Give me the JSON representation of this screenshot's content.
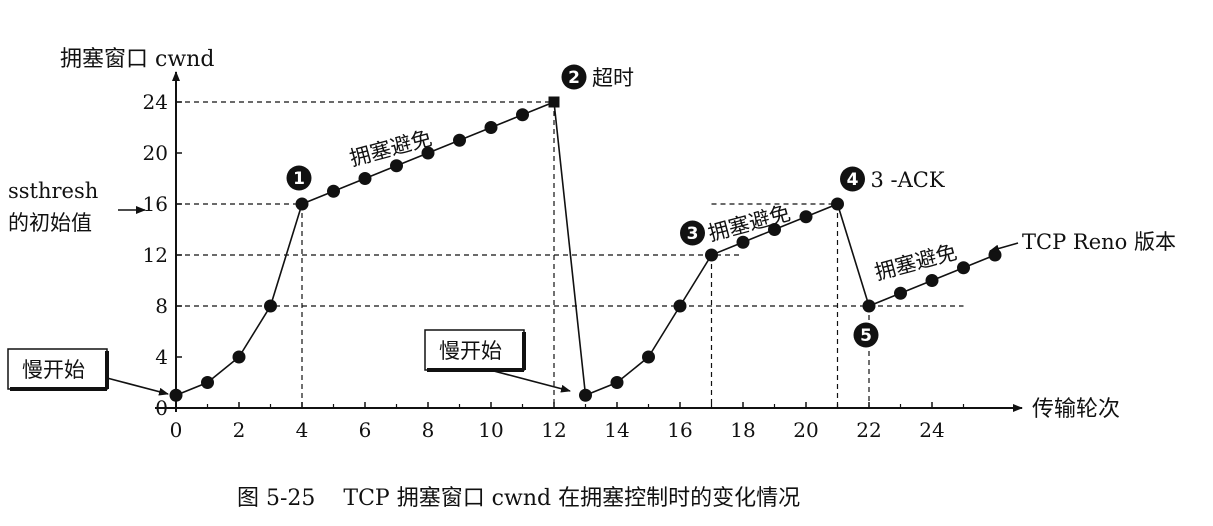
{
  "chart_data": {
    "type": "line",
    "title": "图 5-25    TCP 拥塞窗口 cwnd 在拥塞控制时的变化情况",
    "ylabel": "拥塞窗口  cwnd",
    "xlabel": "传输轮次",
    "xlim": [
      0,
      26
    ],
    "ylim": [
      0,
      24
    ],
    "xticks": [
      "0",
      "2",
      "4",
      "6",
      "8",
      "10",
      "12",
      "14",
      "16",
      "18",
      "20",
      "22",
      "24"
    ],
    "yticks": [
      "0",
      "4",
      "8",
      "12",
      "16",
      "20",
      "24"
    ],
    "x": [
      0,
      1,
      2,
      3,
      4,
      5,
      6,
      7,
      8,
      9,
      10,
      11,
      12,
      13,
      14,
      15,
      16,
      17,
      18,
      19,
      20,
      21,
      22,
      23,
      24,
      25,
      26
    ],
    "series": [
      {
        "values": [
          1,
          2,
          4,
          8,
          16,
          17,
          18,
          19,
          20,
          21,
          22,
          23,
          24,
          1,
          2,
          4,
          8,
          12,
          13,
          14,
          15,
          16,
          8,
          9,
          10,
          11,
          12
        ]
      }
    ],
    "markers": [
      {
        "number": "1",
        "x": 4,
        "y": 16,
        "text": ""
      },
      {
        "number": "2",
        "x": 12,
        "y": 24,
        "text": "超时"
      },
      {
        "number": "3",
        "x": 17,
        "y": 12,
        "text": "拥塞避免"
      },
      {
        "number": "4",
        "x": 21,
        "y": 16,
        "text": "3 -ACK"
      },
      {
        "number": "5",
        "x": 22,
        "y": 8,
        "text": ""
      }
    ],
    "annotations": {
      "ssthresh_line1": "ssthresh",
      "ssthresh_line2": "的初始值",
      "slow_start": "慢开始",
      "congestion_avoidance": "拥塞避免",
      "reno_version": "TCP Reno 版本"
    }
  }
}
